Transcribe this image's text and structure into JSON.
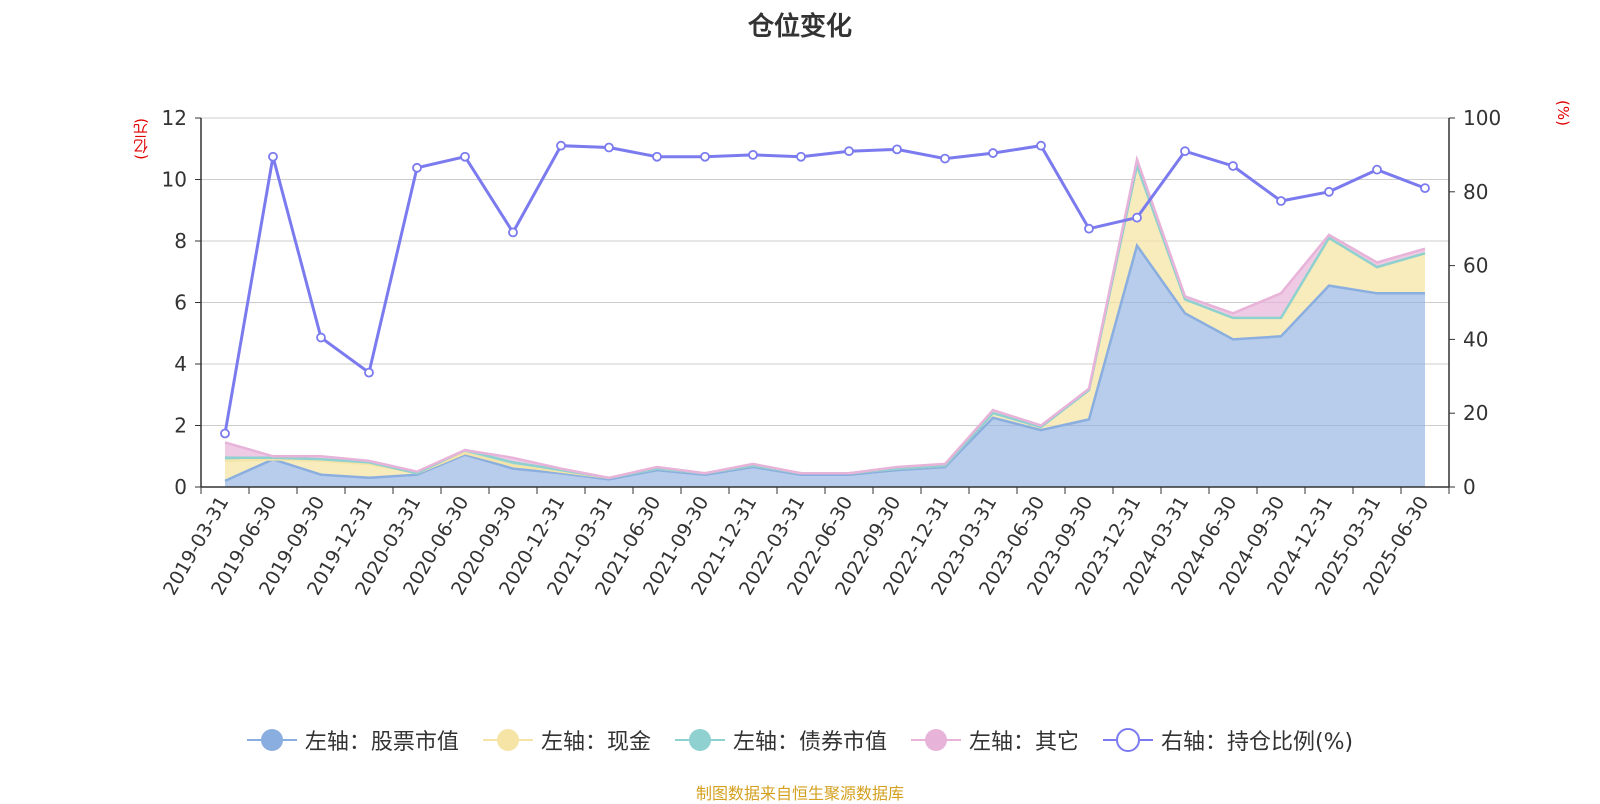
{
  "title": "仓位变化",
  "units": {
    "left": "(亿元)",
    "right": "(%)"
  },
  "source": "制图数据来自恒生聚源数据库",
  "colors": {
    "stock": "#8aaedf",
    "cash": "#f5e4a6",
    "bond": "#8fd0d0",
    "other": "#e8b3d9",
    "ratio": "#7b7bef",
    "grid": "#cccccc",
    "axis": "#333333"
  },
  "chart_data": {
    "type": "area",
    "categories": [
      "2019-03-31",
      "2019-06-30",
      "2019-09-30",
      "2019-12-31",
      "2020-03-31",
      "2020-06-30",
      "2020-09-30",
      "2020-12-31",
      "2021-03-31",
      "2021-06-30",
      "2021-09-30",
      "2021-12-31",
      "2022-03-31",
      "2022-06-30",
      "2022-09-30",
      "2022-12-31",
      "2023-03-31",
      "2023-06-30",
      "2023-09-30",
      "2023-12-31",
      "2024-03-31",
      "2024-06-30",
      "2024-09-30",
      "2024-12-31",
      "2025-03-31",
      "2025-06-30"
    ],
    "left_axis": {
      "ylim": [
        0,
        12
      ],
      "ticks": [
        0,
        2,
        4,
        6,
        8,
        10,
        12
      ]
    },
    "right_axis": {
      "ylim": [
        0,
        100
      ],
      "ticks": [
        0,
        20,
        40,
        60,
        80,
        100
      ]
    },
    "series": [
      {
        "name": "左轴：股票市值",
        "axis": "left",
        "kind": "stacked-area",
        "values": [
          0.2,
          0.9,
          0.4,
          0.3,
          0.4,
          1.05,
          0.6,
          0.45,
          0.25,
          0.55,
          0.4,
          0.65,
          0.4,
          0.4,
          0.55,
          0.65,
          2.25,
          1.85,
          2.2,
          7.85,
          5.65,
          4.8,
          4.9,
          6.55,
          6.3,
          6.3
        ]
      },
      {
        "name": "左轴：现金",
        "axis": "left",
        "kind": "stacked-area",
        "values": [
          0.65,
          0.0,
          0.45,
          0.45,
          0.05,
          0.05,
          0.1,
          0.05,
          0.05,
          0.05,
          0.05,
          0.05,
          0.05,
          0.05,
          0.05,
          0.05,
          0.15,
          0.1,
          0.95,
          2.6,
          0.45,
          0.7,
          0.6,
          1.55,
          0.85,
          1.3
        ]
      },
      {
        "name": "左轴：债券市值",
        "axis": "left",
        "kind": "stacked-area",
        "values": [
          0.1,
          0.05,
          0.05,
          0.05,
          0.0,
          0.1,
          0.1,
          0.05,
          0.0,
          0.0,
          0.0,
          0.0,
          0.0,
          0.0,
          0.0,
          0.0,
          0.0,
          0.0,
          0.0,
          0.0,
          0.0,
          0.0,
          0.0,
          0.0,
          0.0,
          0.0
        ]
      },
      {
        "name": "左轴：其它",
        "axis": "left",
        "kind": "stacked-area",
        "values": [
          0.5,
          0.05,
          0.1,
          0.05,
          0.05,
          0.0,
          0.15,
          0.05,
          0.0,
          0.05,
          0.0,
          0.05,
          0.0,
          0.0,
          0.05,
          0.05,
          0.1,
          0.05,
          0.05,
          0.2,
          0.1,
          0.15,
          0.8,
          0.1,
          0.15,
          0.15
        ]
      },
      {
        "name": "右轴：持仓比例(%)",
        "axis": "right",
        "kind": "line",
        "values": [
          14.5,
          89.5,
          40.5,
          31.0,
          86.5,
          89.5,
          69.0,
          92.5,
          92.0,
          89.5,
          89.5,
          90.0,
          89.5,
          91.0,
          91.5,
          89.0,
          90.5,
          92.5,
          70.0,
          73.0,
          91.0,
          87.0,
          77.5,
          80.0,
          86.0,
          81.0
        ]
      }
    ]
  }
}
